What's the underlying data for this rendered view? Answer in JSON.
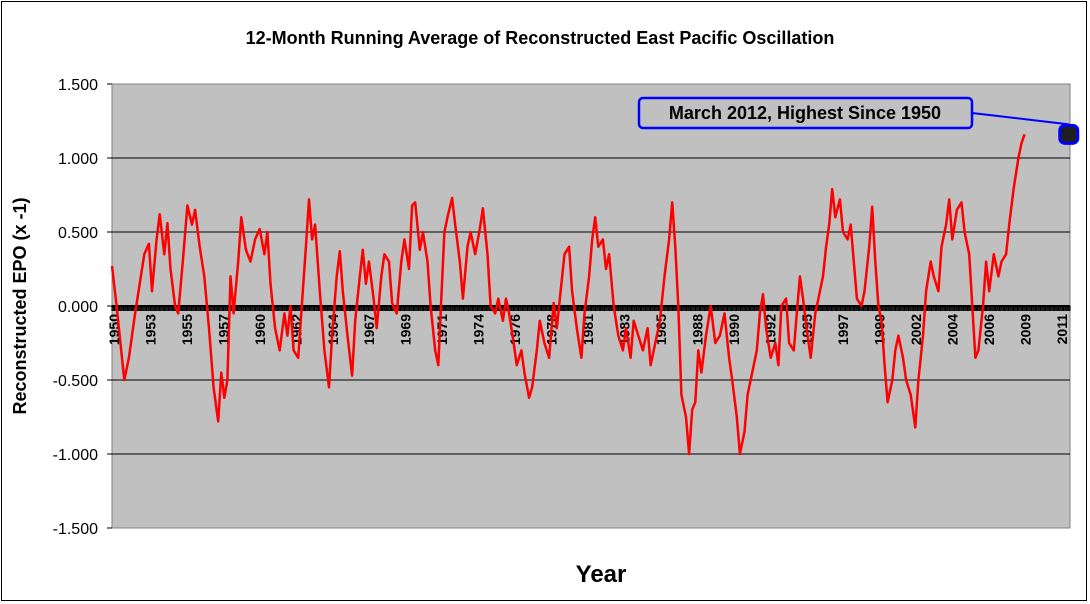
{
  "chart_data": {
    "type": "line",
    "title": "12-Month Running Average of Reconstructed East Pacific Oscillation",
    "xlabel": "Year",
    "ylabel": "Reconstructed EPO (x -1)",
    "ylim": [
      -1.5,
      1.5
    ],
    "xlim": [
      1950.0,
      2012.25
    ],
    "y_ticks": [
      "-1.500",
      "-1.000",
      "-0.500",
      "0.000",
      "0.500",
      "1.000",
      "1.500"
    ],
    "x_ticks": [
      "1950",
      "1953",
      "1955",
      "1957",
      "1960",
      "1962",
      "1964",
      "1967",
      "1969",
      "1971",
      "1974",
      "1976",
      "1978",
      "1981",
      "1983",
      "1985",
      "1988",
      "1990",
      "1992",
      "1995",
      "1997",
      "1999",
      "2002",
      "2004",
      "2006",
      "2009",
      "2011"
    ],
    "grid": true,
    "plot_background": "#c0c0c0",
    "line_color": "#ff0000",
    "annotation": {
      "text": "March 2012, Highest Since 1950",
      "x": 2012.17,
      "y": 1.16,
      "border_color": "#0000ff"
    },
    "series": [
      {
        "points": [
          [
            1950.0,
            0.27
          ],
          [
            1950.3,
            0.0
          ],
          [
            1950.6,
            -0.3
          ],
          [
            1950.8,
            -0.5
          ],
          [
            1951.1,
            -0.35
          ],
          [
            1951.5,
            -0.05
          ],
          [
            1951.8,
            0.15
          ],
          [
            1952.1,
            0.35
          ],
          [
            1952.4,
            0.42
          ],
          [
            1952.6,
            0.1
          ],
          [
            1952.9,
            0.45
          ],
          [
            1953.1,
            0.62
          ],
          [
            1953.4,
            0.35
          ],
          [
            1953.6,
            0.56
          ],
          [
            1953.8,
            0.25
          ],
          [
            1954.1,
            0.0
          ],
          [
            1954.3,
            -0.05
          ],
          [
            1954.6,
            0.3
          ],
          [
            1954.9,
            0.68
          ],
          [
            1955.2,
            0.55
          ],
          [
            1955.4,
            0.65
          ],
          [
            1955.7,
            0.4
          ],
          [
            1956.0,
            0.2
          ],
          [
            1956.3,
            -0.15
          ],
          [
            1956.6,
            -0.55
          ],
          [
            1956.9,
            -0.78
          ],
          [
            1957.1,
            -0.45
          ],
          [
            1957.3,
            -0.62
          ],
          [
            1957.5,
            -0.5
          ],
          [
            1957.7,
            0.2
          ],
          [
            1957.9,
            -0.05
          ],
          [
            1958.2,
            0.3
          ],
          [
            1958.4,
            0.6
          ],
          [
            1958.7,
            0.38
          ],
          [
            1959.0,
            0.3
          ],
          [
            1959.3,
            0.45
          ],
          [
            1959.6,
            0.52
          ],
          [
            1959.9,
            0.35
          ],
          [
            1960.1,
            0.5
          ],
          [
            1960.3,
            0.15
          ],
          [
            1960.6,
            -0.15
          ],
          [
            1960.9,
            -0.3
          ],
          [
            1961.2,
            -0.05
          ],
          [
            1961.4,
            -0.2
          ],
          [
            1961.6,
            0.0
          ],
          [
            1961.8,
            -0.3
          ],
          [
            1962.1,
            -0.35
          ],
          [
            1962.4,
            0.1
          ],
          [
            1962.6,
            0.4
          ],
          [
            1962.8,
            0.72
          ],
          [
            1963.0,
            0.45
          ],
          [
            1963.2,
            0.55
          ],
          [
            1963.5,
            0.1
          ],
          [
            1963.8,
            -0.3
          ],
          [
            1964.1,
            -0.55
          ],
          [
            1964.3,
            -0.2
          ],
          [
            1964.6,
            0.2
          ],
          [
            1964.8,
            0.37
          ],
          [
            1965.0,
            0.1
          ],
          [
            1965.3,
            -0.2
          ],
          [
            1965.6,
            -0.47
          ],
          [
            1965.8,
            -0.1
          ],
          [
            1966.1,
            0.2
          ],
          [
            1966.3,
            0.38
          ],
          [
            1966.5,
            0.15
          ],
          [
            1966.7,
            0.3
          ],
          [
            1967.0,
            0.05
          ],
          [
            1967.2,
            -0.15
          ],
          [
            1967.5,
            0.2
          ],
          [
            1967.7,
            0.35
          ],
          [
            1968.0,
            0.3
          ],
          [
            1968.2,
            0.02
          ],
          [
            1968.5,
            -0.05
          ],
          [
            1968.8,
            0.3
          ],
          [
            1969.0,
            0.45
          ],
          [
            1969.3,
            0.25
          ],
          [
            1969.5,
            0.68
          ],
          [
            1969.7,
            0.7
          ],
          [
            1970.0,
            0.38
          ],
          [
            1970.2,
            0.5
          ],
          [
            1970.5,
            0.3
          ],
          [
            1970.7,
            0.0
          ],
          [
            1971.0,
            -0.3
          ],
          [
            1971.2,
            -0.4
          ],
          [
            1971.4,
            0.05
          ],
          [
            1971.6,
            0.5
          ],
          [
            1971.8,
            0.6
          ],
          [
            1972.1,
            0.73
          ],
          [
            1972.3,
            0.55
          ],
          [
            1972.6,
            0.3
          ],
          [
            1972.8,
            0.05
          ],
          [
            1973.1,
            0.4
          ],
          [
            1973.3,
            0.5
          ],
          [
            1973.6,
            0.35
          ],
          [
            1973.9,
            0.52
          ],
          [
            1974.1,
            0.66
          ],
          [
            1974.4,
            0.35
          ],
          [
            1974.6,
            0.0
          ],
          [
            1974.9,
            -0.05
          ],
          [
            1975.1,
            0.05
          ],
          [
            1975.4,
            -0.1
          ],
          [
            1975.6,
            0.05
          ],
          [
            1975.8,
            -0.05
          ],
          [
            1976.1,
            -0.25
          ],
          [
            1976.3,
            -0.4
          ],
          [
            1976.6,
            -0.3
          ],
          [
            1976.8,
            -0.45
          ],
          [
            1977.1,
            -0.62
          ],
          [
            1977.3,
            -0.55
          ],
          [
            1977.6,
            -0.3
          ],
          [
            1977.8,
            -0.1
          ],
          [
            1978.1,
            -0.25
          ],
          [
            1978.4,
            -0.35
          ],
          [
            1978.7,
            0.02
          ],
          [
            1978.9,
            -0.15
          ],
          [
            1979.2,
            0.15
          ],
          [
            1979.4,
            0.35
          ],
          [
            1979.7,
            0.4
          ],
          [
            1979.9,
            0.1
          ],
          [
            1980.2,
            -0.15
          ],
          [
            1980.5,
            -0.35
          ],
          [
            1980.7,
            -0.05
          ],
          [
            1981.0,
            0.2
          ],
          [
            1981.2,
            0.45
          ],
          [
            1981.4,
            0.6
          ],
          [
            1981.6,
            0.4
          ],
          [
            1981.9,
            0.45
          ],
          [
            1982.1,
            0.25
          ],
          [
            1982.3,
            0.35
          ],
          [
            1982.6,
            0.0
          ],
          [
            1982.9,
            -0.2
          ],
          [
            1983.2,
            -0.3
          ],
          [
            1983.4,
            -0.15
          ],
          [
            1983.7,
            -0.35
          ],
          [
            1983.9,
            -0.1
          ],
          [
            1984.2,
            -0.2
          ],
          [
            1984.5,
            -0.3
          ],
          [
            1984.8,
            -0.15
          ],
          [
            1985.0,
            -0.4
          ],
          [
            1985.3,
            -0.25
          ],
          [
            1985.6,
            -0.1
          ],
          [
            1985.9,
            0.2
          ],
          [
            1986.2,
            0.45
          ],
          [
            1986.4,
            0.7
          ],
          [
            1986.6,
            0.4
          ],
          [
            1986.8,
            0.0
          ],
          [
            1987.0,
            -0.6
          ],
          [
            1987.3,
            -0.75
          ],
          [
            1987.5,
            -1.0
          ],
          [
            1987.7,
            -0.7
          ],
          [
            1987.9,
            -0.65
          ],
          [
            1988.1,
            -0.3
          ],
          [
            1988.3,
            -0.45
          ],
          [
            1988.6,
            -0.2
          ],
          [
            1988.9,
            0.0
          ],
          [
            1989.2,
            -0.25
          ],
          [
            1989.5,
            -0.2
          ],
          [
            1989.8,
            -0.05
          ],
          [
            1990.1,
            -0.35
          ],
          [
            1990.3,
            -0.5
          ],
          [
            1990.6,
            -0.75
          ],
          [
            1990.8,
            -1.0
          ],
          [
            1991.1,
            -0.85
          ],
          [
            1991.3,
            -0.6
          ],
          [
            1991.6,
            -0.45
          ],
          [
            1991.9,
            -0.3
          ],
          [
            1992.1,
            -0.05
          ],
          [
            1992.3,
            0.08
          ],
          [
            1992.5,
            -0.15
          ],
          [
            1992.8,
            -0.35
          ],
          [
            1993.1,
            -0.25
          ],
          [
            1993.3,
            -0.4
          ],
          [
            1993.5,
            0.0
          ],
          [
            1993.8,
            0.05
          ],
          [
            1994.0,
            -0.25
          ],
          [
            1994.3,
            -0.3
          ],
          [
            1994.5,
            -0.05
          ],
          [
            1994.7,
            0.2
          ],
          [
            1994.9,
            0.05
          ],
          [
            1995.2,
            -0.2
          ],
          [
            1995.4,
            -0.35
          ],
          [
            1995.7,
            -0.05
          ],
          [
            1995.9,
            0.05
          ],
          [
            1996.2,
            0.2
          ],
          [
            1996.4,
            0.4
          ],
          [
            1996.6,
            0.55
          ],
          [
            1996.8,
            0.79
          ],
          [
            1997.0,
            0.6
          ],
          [
            1997.3,
            0.72
          ],
          [
            1997.5,
            0.5
          ],
          [
            1997.8,
            0.45
          ],
          [
            1998.0,
            0.55
          ],
          [
            1998.2,
            0.3
          ],
          [
            1998.4,
            0.05
          ],
          [
            1998.7,
            0.0
          ],
          [
            1998.9,
            0.1
          ],
          [
            1999.2,
            0.4
          ],
          [
            1999.4,
            0.67
          ],
          [
            1999.6,
            0.3
          ],
          [
            1999.8,
            0.0
          ],
          [
            2000.0,
            -0.1
          ],
          [
            2000.2,
            -0.4
          ],
          [
            2000.4,
            -0.65
          ],
          [
            2000.7,
            -0.5
          ],
          [
            2000.9,
            -0.3
          ],
          [
            2001.1,
            -0.2
          ],
          [
            2001.4,
            -0.35
          ],
          [
            2001.6,
            -0.5
          ],
          [
            2001.9,
            -0.6
          ],
          [
            2002.2,
            -0.82
          ],
          [
            2002.4,
            -0.5
          ],
          [
            2002.7,
            -0.2
          ],
          [
            2002.9,
            0.1
          ],
          [
            2003.2,
            0.3
          ],
          [
            2003.4,
            0.2
          ],
          [
            2003.7,
            0.1
          ],
          [
            2003.9,
            0.4
          ],
          [
            2004.2,
            0.55
          ],
          [
            2004.4,
            0.72
          ],
          [
            2004.6,
            0.45
          ],
          [
            2004.9,
            0.65
          ],
          [
            2005.2,
            0.7
          ],
          [
            2005.4,
            0.5
          ],
          [
            2005.7,
            0.35
          ],
          [
            2005.9,
            0.0
          ],
          [
            2006.1,
            -0.35
          ],
          [
            2006.3,
            -0.3
          ],
          [
            2006.6,
            0.0
          ],
          [
            2006.8,
            0.3
          ],
          [
            2007.0,
            0.1
          ],
          [
            2007.3,
            0.35
          ],
          [
            2007.6,
            0.2
          ],
          [
            2007.8,
            0.3
          ],
          [
            2008.1,
            0.35
          ],
          [
            2008.3,
            0.55
          ],
          [
            2008.6,
            0.8
          ],
          [
            2008.9,
            1.0
          ],
          [
            2009.1,
            1.1
          ],
          [
            2009.3,
            1.16
          ]
        ]
      }
    ]
  }
}
